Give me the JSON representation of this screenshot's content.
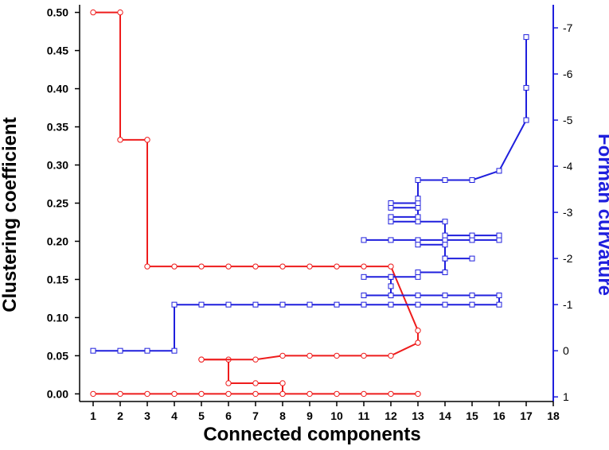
{
  "chart_data": {
    "type": "line",
    "xlabel": "Connected components",
    "ylabel_left": "Clustering coefficient",
    "ylabel_right": "Forman curvature",
    "xlim": [
      0.5,
      18
    ],
    "x_ticks": [
      1,
      2,
      3,
      4,
      5,
      6,
      7,
      8,
      9,
      10,
      11,
      12,
      13,
      14,
      15,
      16,
      17,
      18
    ],
    "ylim_left": [
      -0.01,
      0.51
    ],
    "y_ticks_left": [
      0.0,
      0.05,
      0.1,
      0.15,
      0.2,
      0.25,
      0.3,
      0.35,
      0.4,
      0.45,
      0.5
    ],
    "ylim_right": [
      1.1,
      -7.5
    ],
    "y_ticks_right": [
      1,
      0,
      -1,
      -2,
      -3,
      -4,
      -5,
      -6,
      -7
    ],
    "grid": false,
    "colors": {
      "clustering": "#ee1c1c",
      "forman": "#1f1fdd"
    },
    "series": [
      {
        "axis": "left",
        "marker": "circle",
        "lines": [
          [
            [
              1,
              0.5
            ],
            [
              2,
              0.5
            ],
            [
              2,
              0.333
            ],
            [
              3,
              0.333
            ],
            [
              3,
              0.167
            ],
            [
              4,
              0.167
            ],
            [
              5,
              0.167
            ],
            [
              6,
              0.167
            ],
            [
              7,
              0.167
            ],
            [
              8,
              0.167
            ],
            [
              9,
              0.167
            ],
            [
              10,
              0.167
            ],
            [
              11,
              0.167
            ],
            [
              12,
              0.167
            ],
            [
              13,
              0.083
            ],
            [
              13,
              0.067
            ]
          ],
          [
            [
              5,
              0.045
            ],
            [
              6,
              0.045
            ],
            [
              6,
              0.014
            ],
            [
              7,
              0.014
            ],
            [
              8,
              0.014
            ],
            [
              8,
              0.0
            ]
          ],
          [
            [
              1,
              0.0
            ],
            [
              2,
              0.0
            ],
            [
              3,
              0.0
            ],
            [
              4,
              0.0
            ],
            [
              5,
              0.0
            ],
            [
              6,
              0.0
            ],
            [
              7,
              0.0
            ],
            [
              8,
              0.0
            ],
            [
              9,
              0.0
            ],
            [
              10,
              0.0
            ],
            [
              11,
              0.0
            ],
            [
              12,
              0.0
            ],
            [
              13,
              0.0
            ]
          ],
          [
            [
              5,
              0.045
            ],
            [
              7,
              0.045
            ],
            [
              8,
              0.05
            ],
            [
              9,
              0.05
            ],
            [
              10,
              0.05
            ],
            [
              11,
              0.05
            ],
            [
              12,
              0.05
            ],
            [
              13,
              0.067
            ]
          ]
        ]
      },
      {
        "axis": "right",
        "marker": "square",
        "lines": [
          [
            [
              1,
              0
            ],
            [
              2,
              0
            ],
            [
              3,
              0
            ],
            [
              4,
              0
            ],
            [
              4,
              -1
            ],
            [
              5,
              -1
            ],
            [
              6,
              -1
            ],
            [
              7,
              -1
            ],
            [
              8,
              -1
            ],
            [
              9,
              -1
            ],
            [
              10,
              -1
            ],
            [
              11,
              -1
            ],
            [
              12,
              -1
            ],
            [
              13,
              -1
            ],
            [
              14,
              -1
            ],
            [
              15,
              -1
            ],
            [
              16,
              -1
            ],
            [
              16,
              -1.2
            ],
            [
              15,
              -1.2
            ],
            [
              14,
              -1.2
            ],
            [
              13,
              -1.2
            ],
            [
              12,
              -1.2
            ],
            [
              11,
              -1.2
            ]
          ],
          [
            [
              11,
              -1.6
            ],
            [
              12,
              -1.6
            ],
            [
              12,
              -1.4
            ],
            [
              12,
              -1.2
            ]
          ],
          [
            [
              11,
              -2.4
            ],
            [
              12,
              -2.4
            ],
            [
              13,
              -2.4
            ],
            [
              14,
              -2.4
            ],
            [
              15,
              -2.4
            ],
            [
              16,
              -2.4
            ],
            [
              16,
              -2.5
            ],
            [
              15,
              -2.5
            ],
            [
              14,
              -2.5
            ],
            [
              14,
              -2.8
            ],
            [
              13,
              -2.8
            ],
            [
              12,
              -2.8
            ]
          ],
          [
            [
              12,
              -1.6
            ],
            [
              13,
              -1.6
            ],
            [
              13,
              -1.7
            ],
            [
              14,
              -1.7
            ],
            [
              14,
              -2.0
            ],
            [
              14,
              -2.3
            ],
            [
              13,
              -2.3
            ]
          ],
          [
            [
              14,
              -2.0
            ],
            [
              15,
              -2.0
            ]
          ],
          [
            [
              12,
              -2.9
            ],
            [
              13,
              -2.9
            ],
            [
              13,
              -3.1
            ],
            [
              12,
              -3.1
            ],
            [
              12,
              -3.2
            ],
            [
              13,
              -3.2
            ],
            [
              13,
              -3.3
            ],
            [
              13,
              -3.7
            ],
            [
              14,
              -3.7
            ],
            [
              15,
              -3.7
            ],
            [
              16,
              -3.9
            ],
            [
              17,
              -5.0
            ],
            [
              17,
              -5.7
            ],
            [
              17,
              -6.8
            ]
          ]
        ]
      }
    ]
  }
}
